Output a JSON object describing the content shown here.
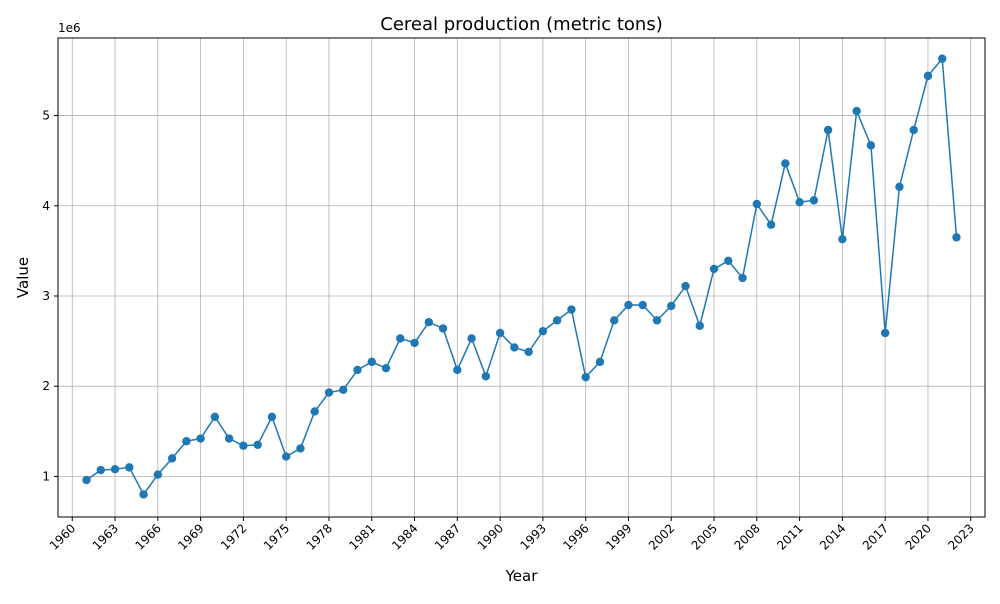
{
  "chart_data": {
    "type": "line",
    "title": "Cereal production (metric tons)",
    "xlabel": "Year",
    "ylabel": "Value",
    "y_offset_label": "1e6",
    "xlim": [
      1959,
      2024
    ],
    "ylim": [
      550000,
      5860000
    ],
    "x_ticks": [
      1960,
      1963,
      1966,
      1969,
      1972,
      1975,
      1978,
      1981,
      1984,
      1987,
      1990,
      1993,
      1996,
      1999,
      2002,
      2005,
      2008,
      2011,
      2014,
      2017,
      2020,
      2023
    ],
    "y_ticks": [
      1000000,
      2000000,
      3000000,
      4000000,
      5000000
    ],
    "y_tick_labels": [
      "1",
      "2",
      "3",
      "4",
      "5"
    ],
    "grid": true,
    "marker": "circle",
    "color": "#1f77b4",
    "series": [
      {
        "x": [
          1961,
          1962,
          1963,
          1964,
          1965,
          1966,
          1967,
          1968,
          1969,
          1970,
          1971,
          1972,
          1973,
          1974,
          1975,
          1976,
          1977,
          1978,
          1979,
          1980,
          1981,
          1982,
          1983,
          1984,
          1985,
          1986,
          1987,
          1988,
          1989,
          1990,
          1991,
          1992,
          1993,
          1994,
          1995,
          1996,
          1997,
          1998,
          1999,
          2000,
          2001,
          2002,
          2003,
          2004,
          2005,
          2006,
          2007,
          2008,
          2009,
          2010,
          2011,
          2012,
          2013,
          2014,
          2015,
          2016,
          2017,
          2018,
          2019,
          2020,
          2021,
          2022
        ],
        "y": [
          960000,
          1070000,
          1080000,
          1100000,
          800000,
          1020000,
          1200000,
          1390000,
          1420000,
          1660000,
          1420000,
          1340000,
          1350000,
          1660000,
          1220000,
          1310000,
          1720000,
          1930000,
          1960000,
          2180000,
          2270000,
          2200000,
          2530000,
          2480000,
          2710000,
          2640000,
          2180000,
          2530000,
          2110000,
          2590000,
          2430000,
          2380000,
          2610000,
          2730000,
          2850000,
          2100000,
          2270000,
          2730000,
          2900000,
          2900000,
          2730000,
          2890000,
          3110000,
          2670000,
          3300000,
          3390000,
          3200000,
          4020000,
          3790000,
          4470000,
          4040000,
          4060000,
          4840000,
          3630000,
          5050000,
          4670000,
          2590000,
          4210000,
          4840000,
          5440000,
          5630000,
          3650000
        ]
      }
    ]
  }
}
